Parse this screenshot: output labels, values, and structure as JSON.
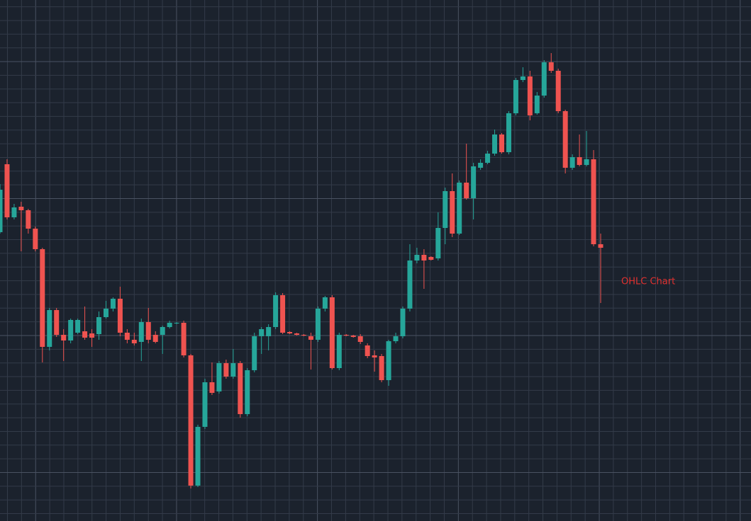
{
  "chart_data": {
    "type": "candlestick",
    "title": "OHLC Chart",
    "up_color": "#26a69a",
    "down_color": "#ef5350",
    "title_color": "#e0312f",
    "grid": true,
    "ylim": [
      0,
      736
    ],
    "open": [
      408,
      504,
      429,
      444,
      439,
      413,
      384,
      246,
      298,
      263,
      255,
      266,
      268,
      265,
      264,
      288,
      300,
      314,
      266,
      256,
      253,
      281,
      263,
      263,
      274,
      279,
      280,
      234,
      50,
      133,
      196,
      183,
      223,
      204,
      223,
      151,
      213,
      261,
      261,
      274,
      319,
      267,
      265,
      263,
      261,
      256,
      300,
      316,
      216,
      263,
      262,
      261,
      248,
      234,
      233,
      199,
      254,
      261,
      300,
      368,
      376,
      373,
      371,
      414,
      466,
      406,
      478,
      456,
      499,
      506,
      519,
      546,
      521,
      576,
      623,
      628,
      576,
      601,
      648,
      636,
      579,
      499,
      514,
      503,
      511,
      391
    ],
    "high": [
      476,
      511,
      448,
      451,
      441,
      416,
      386,
      301,
      301,
      271,
      286,
      286,
      303,
      271,
      296,
      311,
      316,
      331,
      271,
      266,
      286,
      301,
      268,
      276,
      283,
      281,
      283,
      236,
      136,
      201,
      224,
      226,
      228,
      243,
      226,
      216,
      266,
      274,
      278,
      323,
      322,
      268,
      266,
      264,
      266,
      303,
      318,
      319,
      266,
      264,
      263,
      264,
      251,
      241,
      236,
      256,
      266,
      303,
      391,
      386,
      384,
      374,
      436,
      471,
      491,
      481,
      533,
      506,
      511,
      523,
      553,
      548,
      579,
      626,
      641,
      636,
      606,
      651,
      661,
      639,
      581,
      518,
      546,
      551,
      524,
      406
    ],
    "low": [
      406,
      426,
      426,
      381,
      406,
      381,
      224,
      241,
      260,
      226,
      251,
      264,
      256,
      246,
      256,
      286,
      296,
      261,
      251,
      248,
      226,
      251,
      251,
      236,
      272,
      278,
      231,
      46,
      48,
      130,
      178,
      180,
      201,
      201,
      146,
      148,
      210,
      236,
      241,
      271,
      264,
      264,
      262,
      261,
      214,
      253,
      296,
      214,
      213,
      261,
      259,
      250,
      230,
      211,
      196,
      191,
      251,
      258,
      296,
      364,
      328,
      368,
      368,
      391,
      401,
      404,
      454,
      426,
      496,
      504,
      516,
      519,
      518,
      573,
      620,
      566,
      574,
      598,
      633,
      576,
      491,
      496,
      501,
      501,
      388,
      308
    ],
    "close": [
      468,
      429,
      443,
      439,
      413,
      384,
      246,
      298,
      263,
      255,
      284,
      284,
      259,
      259,
      288,
      300,
      314,
      266,
      256,
      251,
      281,
      256,
      253,
      274,
      280,
      280,
      234,
      50,
      133,
      196,
      181,
      223,
      204,
      223,
      151,
      213,
      261,
      271,
      274,
      319,
      266,
      265,
      263,
      262,
      256,
      300,
      316,
      216,
      263,
      262,
      260,
      253,
      233,
      231,
      199,
      254,
      261,
      300,
      368,
      376,
      368,
      369,
      414,
      466,
      406,
      478,
      456,
      501,
      506,
      519,
      546,
      521,
      576,
      623,
      628,
      573,
      601,
      648,
      636,
      579,
      499,
      514,
      503,
      511,
      391,
      386
    ]
  }
}
